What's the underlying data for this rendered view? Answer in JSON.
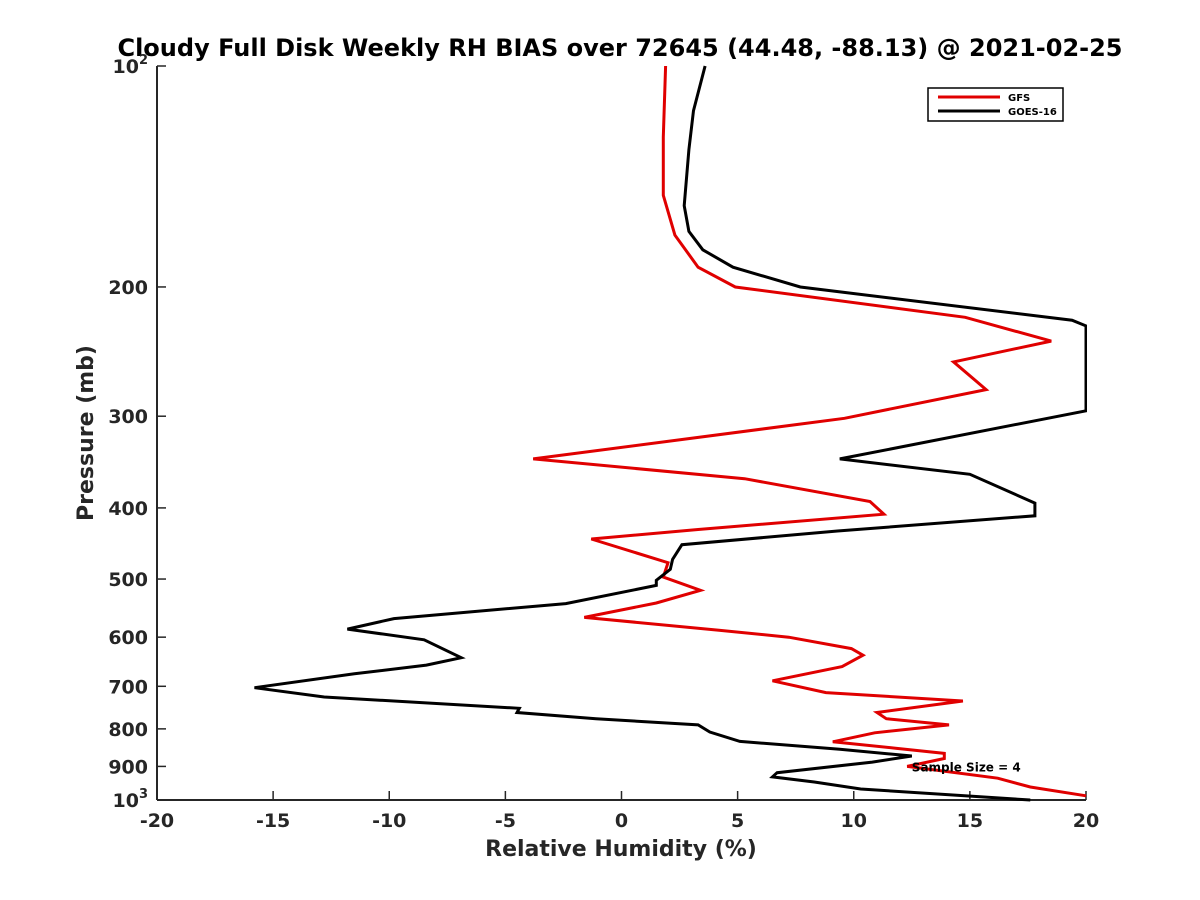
{
  "chart_data": {
    "type": "line",
    "title": "Cloudy Full Disk Weekly RH BIAS over 72645 (44.48, -88.13) @ 2021-02-25",
    "xlabel": "Relative Humidity (%)",
    "ylabel": "Pressure (mb)",
    "xlim": [
      -20,
      20
    ],
    "ylim": [
      100,
      1000
    ],
    "y_scale": "log",
    "y_reversed": true,
    "x_ticks": [
      "-20",
      "-15",
      "-10",
      "-5",
      "0",
      "5",
      "10",
      "15",
      "20"
    ],
    "y_ticks": [
      {
        "value": 100,
        "base": "10",
        "exp": "2"
      },
      {
        "value": 200,
        "label": "200"
      },
      {
        "value": 300,
        "label": "300"
      },
      {
        "value": 400,
        "label": "400"
      },
      {
        "value": 500,
        "label": "500"
      },
      {
        "value": 600,
        "label": "600"
      },
      {
        "value": 700,
        "label": "700"
      },
      {
        "value": 800,
        "label": "800"
      },
      {
        "value": 900,
        "label": "900"
      },
      {
        "value": 1000,
        "base": "10",
        "exp": "3"
      }
    ],
    "grid": false,
    "legend_position": "top-right",
    "annotation": {
      "text": "Sample Size = 4",
      "x": 12.5,
      "y": 900
    },
    "series": [
      {
        "name": "GFS",
        "color": "#e00000",
        "points": [
          [
            1.9,
            100
          ],
          [
            1.8,
            125
          ],
          [
            1.8,
            150
          ],
          [
            2.3,
            170
          ],
          [
            3.3,
            188
          ],
          [
            4.9,
            200
          ],
          [
            14.8,
            220
          ],
          [
            18.5,
            237
          ],
          [
            14.3,
            253
          ],
          [
            15.7,
            276
          ],
          [
            9.6,
            302
          ],
          [
            -3.8,
            343
          ],
          [
            5.3,
            365
          ],
          [
            10.7,
            392
          ],
          [
            11.3,
            408
          ],
          [
            3.3,
            428
          ],
          [
            -1.3,
            441
          ],
          [
            2.0,
            475
          ],
          [
            1.8,
            497
          ],
          [
            3.4,
            518
          ],
          [
            1.5,
            539
          ],
          [
            -1.6,
            564
          ],
          [
            4.2,
            587
          ],
          [
            7.2,
            600
          ],
          [
            9.9,
            622
          ],
          [
            10.4,
            635
          ],
          [
            9.5,
            658
          ],
          [
            6.5,
            688
          ],
          [
            8.8,
            714
          ],
          [
            14.7,
            733
          ],
          [
            11.0,
            760
          ],
          [
            11.4,
            775
          ],
          [
            14.1,
            790
          ],
          [
            10.9,
            810
          ],
          [
            9.1,
            833
          ],
          [
            11.8,
            850
          ],
          [
            13.9,
            864
          ],
          [
            13.9,
            878
          ],
          [
            12.3,
            900
          ],
          [
            16.2,
            934
          ],
          [
            17.6,
            960
          ],
          [
            20.0,
            987
          ]
        ]
      },
      {
        "name": "GOES-16",
        "color": "#000000",
        "points": [
          [
            3.6,
            100
          ],
          [
            3.1,
            115
          ],
          [
            2.9,
            130
          ],
          [
            2.7,
            155
          ],
          [
            2.9,
            168
          ],
          [
            3.5,
            178
          ],
          [
            4.8,
            188
          ],
          [
            7.7,
            200
          ],
          [
            19.4,
            222
          ],
          [
            20.0,
            226
          ],
          [
            20.0,
            295
          ],
          [
            9.4,
            343
          ],
          [
            15.0,
            360
          ],
          [
            17.8,
            394
          ],
          [
            17.8,
            410
          ],
          [
            9.3,
            430
          ],
          [
            2.6,
            449
          ],
          [
            2.2,
            470
          ],
          [
            2.1,
            485
          ],
          [
            1.5,
            502
          ],
          [
            1.5,
            510
          ],
          [
            -2.4,
            540
          ],
          [
            -9.8,
            566
          ],
          [
            -11.8,
            585
          ],
          [
            -8.5,
            605
          ],
          [
            -6.9,
            640
          ],
          [
            -8.4,
            655
          ],
          [
            -11.5,
            673
          ],
          [
            -15.8,
            703
          ],
          [
            -12.8,
            724
          ],
          [
            -4.4,
            750
          ],
          [
            -4.5,
            760
          ],
          [
            -1.1,
            775
          ],
          [
            3.3,
            790
          ],
          [
            3.8,
            808
          ],
          [
            5.1,
            832
          ],
          [
            9.4,
            853
          ],
          [
            12.5,
            871
          ],
          [
            10.8,
            888
          ],
          [
            6.7,
            918
          ],
          [
            6.5,
            930
          ],
          [
            8.3,
            945
          ],
          [
            10.3,
            966
          ],
          [
            17.6,
            1000
          ]
        ]
      }
    ]
  }
}
